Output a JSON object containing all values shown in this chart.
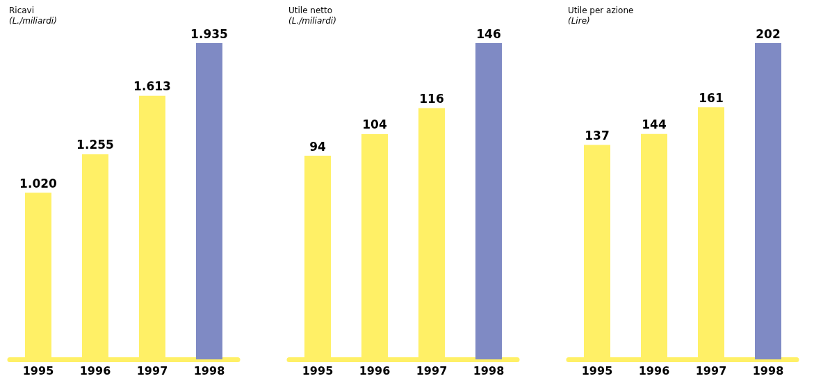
{
  "chart_data": [
    {
      "type": "bar",
      "title": "Ricavi",
      "subtitle": "(L./miliardi)",
      "categories": [
        "1995",
        "1996",
        "1997",
        "1998"
      ],
      "values": [
        1020,
        1255,
        1613,
        1935
      ],
      "value_labels": [
        "1.020",
        "1.255",
        "1.613",
        "1.935"
      ],
      "colors": [
        "#fff066",
        "#fff066",
        "#fff066",
        "#7f8ac4"
      ],
      "tick_labels": "x",
      "grid": false
    },
    {
      "type": "bar",
      "title": "Utile netto",
      "subtitle": "(L./miliardi)",
      "categories": [
        "1995",
        "1996",
        "1997",
        "1998"
      ],
      "values": [
        94,
        104,
        116,
        146
      ],
      "data_labels": true,
      "colors": [
        "#fff066",
        "#fff066",
        "#fff066",
        "#7f8ac4"
      ],
      "tick_labels": "x",
      "grid": false
    },
    {
      "type": "bar",
      "title": "Utile per azione",
      "subtitle": "(Lire)",
      "categories": [
        "1995",
        "1996",
        "1997",
        "1998"
      ],
      "values": [
        137,
        144,
        161,
        202
      ],
      "data_labels": true,
      "colors": [
        "#fff066",
        "#fff066",
        "#fff066",
        "#7f8ac4"
      ],
      "tick_labels": "x",
      "grid": false
    }
  ]
}
